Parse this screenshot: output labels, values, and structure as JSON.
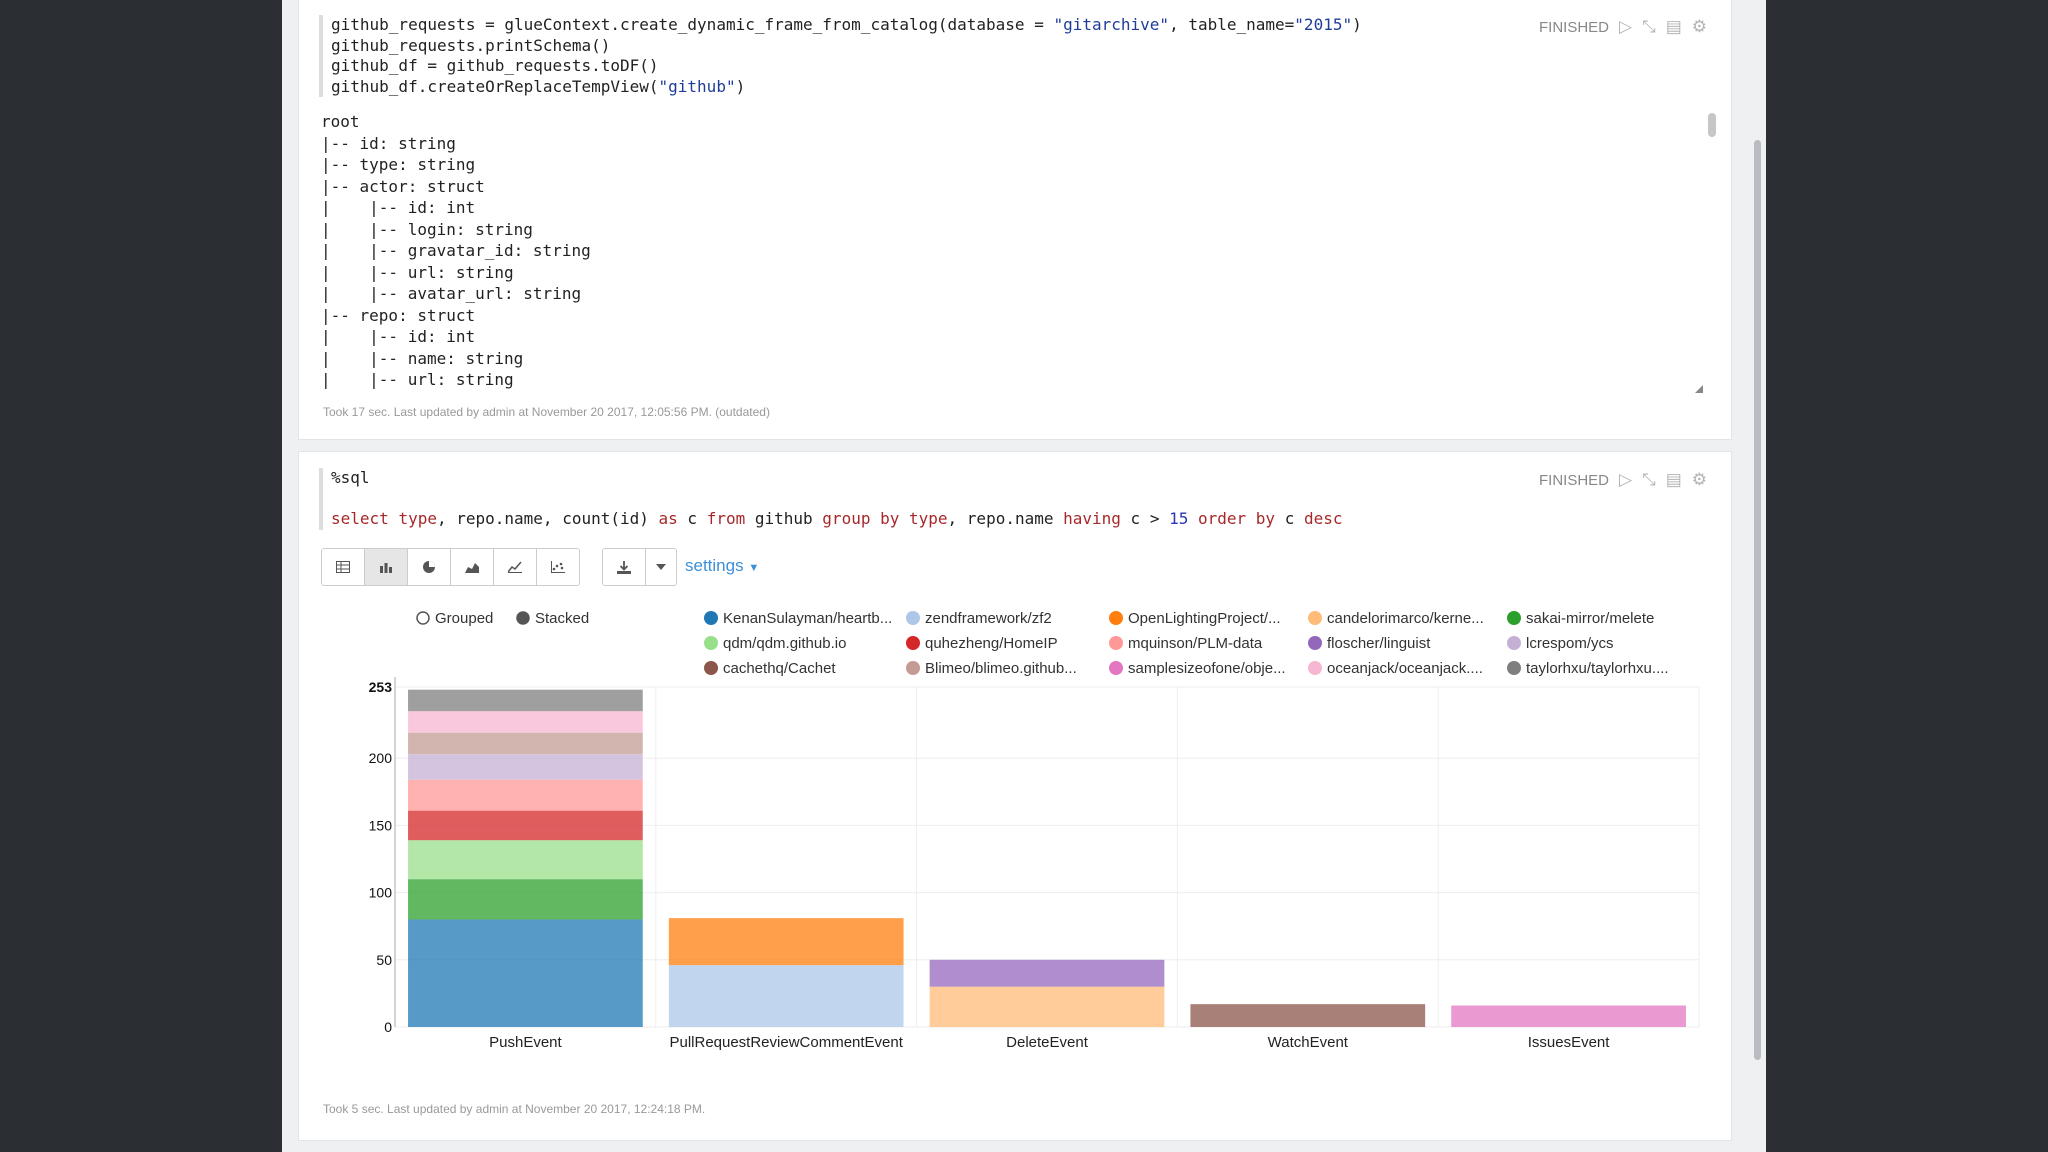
{
  "paragraph1": {
    "code_lines": [
      [
        {
          "t": "github_requests = glueContext.create_dynamic_frame_from_catalog(database = "
        },
        {
          "t": "\"gitarchive\"",
          "c": "str"
        },
        {
          "t": ", table_name="
        },
        {
          "t": "\"2015\"",
          "c": "str"
        },
        {
          "t": ")"
        }
      ],
      [
        {
          "t": "github_requests.printSchema()"
        }
      ],
      [
        {
          "t": "github_df = github_requests.toDF()"
        }
      ],
      [
        {
          "t": "github_df.createOrReplaceTempView("
        },
        {
          "t": "\"github\"",
          "c": "str"
        },
        {
          "t": ")"
        }
      ]
    ],
    "status": "FINISHED",
    "output_lines": [
      "root",
      "|-- id: string",
      "|-- type: string",
      "|-- actor: struct",
      "|    |-- id: int",
      "|    |-- login: string",
      "|    |-- gravatar_id: string",
      "|    |-- url: string",
      "|    |-- avatar_url: string",
      "|-- repo: struct",
      "|    |-- id: int",
      "|    |-- name: string",
      "|    |-- url: string"
    ],
    "footer": "Took 17 sec. Last updated by admin at November 20 2017, 12:05:56 PM. (outdated)"
  },
  "paragraph2": {
    "code_lines": [
      [
        {
          "t": "%sql"
        }
      ],
      [],
      [
        {
          "t": "select",
          "c": "kw"
        },
        {
          "t": " "
        },
        {
          "t": "type",
          "c": "kw"
        },
        {
          "t": ", repo.name, count(id) "
        },
        {
          "t": "as",
          "c": "kw"
        },
        {
          "t": " c "
        },
        {
          "t": "from",
          "c": "kw"
        },
        {
          "t": " github "
        },
        {
          "t": "group by",
          "c": "kw"
        },
        {
          "t": " "
        },
        {
          "t": "type",
          "c": "kw"
        },
        {
          "t": ", repo.name "
        },
        {
          "t": "having",
          "c": "kw"
        },
        {
          "t": " c > "
        },
        {
          "t": "15",
          "c": "num"
        },
        {
          "t": " "
        },
        {
          "t": "order by",
          "c": "kw"
        },
        {
          "t": " c "
        },
        {
          "t": "desc",
          "c": "kw"
        }
      ]
    ],
    "status": "FINISHED",
    "settings_label": "settings",
    "footer": "Took 5 sec. Last updated by admin at November 20 2017, 12:24:18 PM."
  },
  "toolbar_icons": [
    "table-icon",
    "bar-chart-icon",
    "pie-chart-icon",
    "area-chart-icon",
    "line-chart-icon",
    "scatter-chart-icon"
  ],
  "chart_data": {
    "type": "bar",
    "stacked": true,
    "mode_options": [
      "Grouped",
      "Stacked"
    ],
    "selected_mode": "Stacked",
    "categories": [
      "PushEvent",
      "PullRequestReviewCommentEvent",
      "DeleteEvent",
      "WatchEvent",
      "IssuesEvent"
    ],
    "ylim": [
      0,
      253
    ],
    "yticks": [
      0,
      50,
      100,
      150,
      200,
      253
    ],
    "legend_position": "top",
    "grid": true,
    "series": [
      {
        "name": "KenanSulayman/heartb...",
        "color": "#1f77b4",
        "values": [
          80,
          0,
          0,
          0,
          0
        ]
      },
      {
        "name": "zendframework/zf2",
        "color": "#aec7e8",
        "values": [
          0,
          46,
          0,
          0,
          0
        ]
      },
      {
        "name": "OpenLightingProject/...",
        "color": "#ff7f0e",
        "values": [
          0,
          35,
          0,
          0,
          0
        ]
      },
      {
        "name": "candelorimarco/kerne...",
        "color": "#ffbb78",
        "values": [
          0,
          0,
          30,
          0,
          0
        ]
      },
      {
        "name": "sakai-mirror/melete",
        "color": "#2ca02c",
        "values": [
          30,
          0,
          0,
          0,
          0
        ]
      },
      {
        "name": "qdm/qdm.github.io",
        "color": "#98df8a",
        "values": [
          29,
          0,
          0,
          0,
          0
        ]
      },
      {
        "name": "quhezheng/HomeIP",
        "color": "#d62728",
        "values": [
          22,
          0,
          0,
          0,
          0
        ]
      },
      {
        "name": "mquinson/PLM-data",
        "color": "#ff9896",
        "values": [
          23,
          0,
          0,
          0,
          0
        ]
      },
      {
        "name": "floscher/linguist",
        "color": "#9467bd",
        "values": [
          0,
          0,
          20,
          0,
          0
        ]
      },
      {
        "name": "lcrespom/ycs",
        "color": "#c5b0d5",
        "values": [
          19,
          0,
          0,
          0,
          0
        ]
      },
      {
        "name": "cachethq/Cachet",
        "color": "#8c564b",
        "values": [
          0,
          0,
          0,
          17,
          0
        ]
      },
      {
        "name": "Blimeo/blimeo.github...",
        "color": "#c49c94",
        "values": [
          16,
          0,
          0,
          0,
          0
        ]
      },
      {
        "name": "samplesizeofone/obje...",
        "color": "#e377c2",
        "values": [
          0,
          0,
          0,
          0,
          16
        ]
      },
      {
        "name": "oceanjack/oceanjack....",
        "color": "#f7b6d2",
        "values": [
          16,
          0,
          0,
          0,
          0
        ]
      },
      {
        "name": "taylorhxu/taylorhxu....",
        "color": "#7f7f7f",
        "values": [
          16,
          0,
          0,
          0,
          0
        ]
      }
    ]
  }
}
